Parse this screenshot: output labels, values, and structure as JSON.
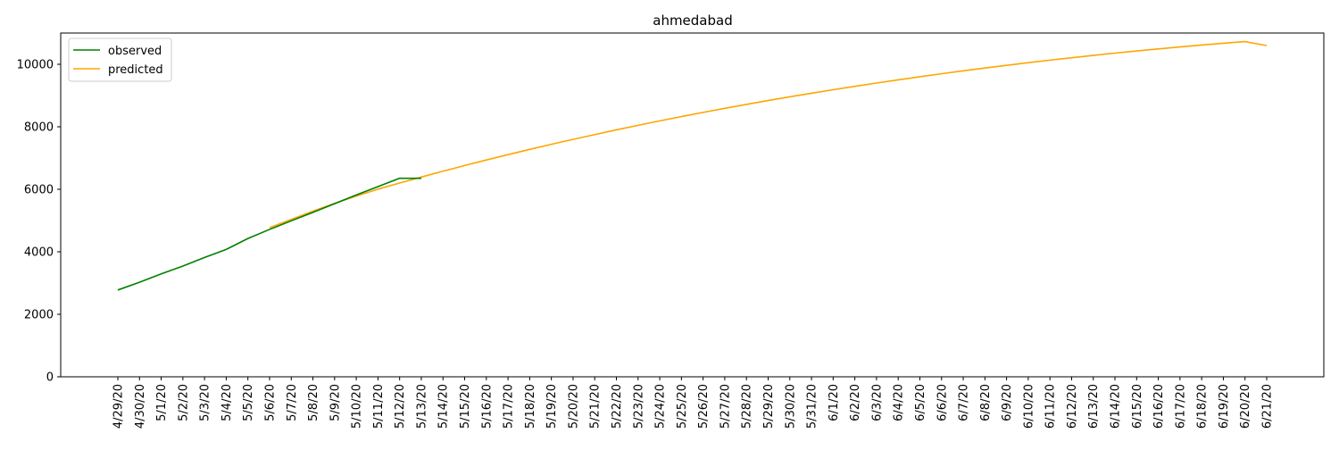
{
  "chart_data": {
    "type": "line",
    "title": "ahmedabad",
    "xlabel": "",
    "ylabel": "",
    "ylim": [
      0,
      11000
    ],
    "yticks": [
      0,
      2000,
      4000,
      6000,
      8000,
      10000
    ],
    "legend": "upper-left",
    "grid": false,
    "categories": [
      "4/29/20",
      "4/30/20",
      "5/1/20",
      "5/2/20",
      "5/3/20",
      "5/4/20",
      "5/5/20",
      "5/6/20",
      "5/7/20",
      "5/8/20",
      "5/9/20",
      "5/10/20",
      "5/11/20",
      "5/12/20",
      "5/13/20",
      "5/14/20",
      "5/15/20",
      "5/16/20",
      "5/17/20",
      "5/18/20",
      "5/19/20",
      "5/20/20",
      "5/21/20",
      "5/22/20",
      "5/23/20",
      "5/24/20",
      "5/25/20",
      "5/26/20",
      "5/27/20",
      "5/28/20",
      "5/29/20",
      "5/30/20",
      "5/31/20",
      "6/1/20",
      "6/2/20",
      "6/3/20",
      "6/4/20",
      "6/5/20",
      "6/6/20",
      "6/7/20",
      "6/8/20",
      "6/9/20",
      "6/10/20",
      "6/11/20",
      "6/12/20",
      "6/13/20",
      "6/14/20",
      "6/15/20",
      "6/16/20",
      "6/17/20",
      "6/18/20",
      "6/19/20",
      "6/20/20",
      "6/21/20"
    ],
    "series": [
      {
        "name": "observed",
        "color": "#008000",
        "x": [
          "4/29/20",
          "4/30/20",
          "5/1/20",
          "5/2/20",
          "5/3/20",
          "5/4/20",
          "5/5/20",
          "5/6/20",
          "5/7/20",
          "5/8/20",
          "5/9/20",
          "5/10/20",
          "5/11/20",
          "5/12/20",
          "5/13/20"
        ],
        "values": [
          2777,
          3026,
          3293,
          3543,
          3817,
          4076,
          4425,
          4716,
          4991,
          5260,
          5540,
          5818,
          6086,
          6353,
          6353
        ]
      },
      {
        "name": "predicted",
        "color": "#ffa500",
        "x": [
          "5/6/20",
          "5/7/20",
          "5/8/20",
          "5/9/20",
          "5/10/20",
          "5/11/20",
          "5/12/20",
          "5/13/20",
          "5/14/20",
          "5/15/20",
          "5/16/20",
          "5/17/20",
          "5/18/20",
          "5/19/20",
          "5/20/20",
          "5/21/20",
          "5/22/20",
          "5/23/20",
          "5/24/20",
          "5/25/20",
          "5/26/20",
          "5/27/20",
          "5/28/20",
          "5/29/20",
          "5/30/20",
          "5/31/20",
          "6/1/20",
          "6/2/20",
          "6/3/20",
          "6/4/20",
          "6/5/20",
          "6/6/20",
          "6/7/20",
          "6/8/20",
          "6/9/20",
          "6/10/20",
          "6/11/20",
          "6/12/20",
          "6/13/20",
          "6/14/20",
          "6/15/20",
          "6/16/20",
          "6/17/20",
          "6/18/20",
          "6/19/20",
          "6/20/20",
          "6/21/20"
        ],
        "values": [
          4772,
          5037,
          5300,
          5550,
          5782,
          6005,
          6199,
          6391,
          6578,
          6760,
          6937,
          7109,
          7276,
          7439,
          7597,
          7751,
          7901,
          8047,
          8189,
          8327,
          8461,
          8591,
          8717,
          8840,
          8959,
          9074,
          9186,
          9295,
          9400,
          9502,
          9601,
          9697,
          9790,
          9880,
          9967,
          10051,
          10132,
          10210,
          10285,
          10357,
          10426,
          10492,
          10555,
          10615,
          10672,
          10726,
          10600
        ]
      }
    ]
  }
}
